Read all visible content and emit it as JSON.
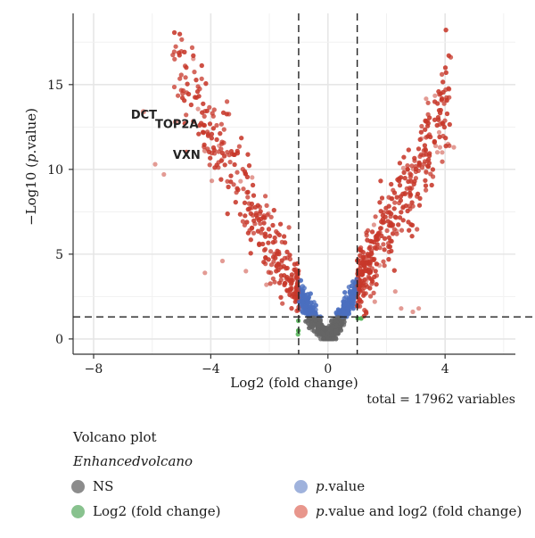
{
  "chart_data": {
    "type": "scatter",
    "title": "Volcano plot",
    "subtitle": "Enhancedvolcano",
    "caption": "total = 17962 variables",
    "xlabel": "Log2 (fold change)",
    "ylabel_prefix": "−Log10 (",
    "ylabel_italic": "p",
    "ylabel_suffix": ".value)",
    "xlim": [
      -8.7,
      6.4
    ],
    "ylim": [
      -0.9,
      19.2
    ],
    "xticks": [
      -8,
      -4,
      0,
      4
    ],
    "xtick_labels": [
      "−8",
      "−4",
      "0",
      "4"
    ],
    "yticks": [
      0,
      5,
      10,
      15
    ],
    "ytick_labels": [
      "0",
      "5",
      "10",
      "15"
    ],
    "fc_cutoff": 1,
    "p_cutoff_log10": 1.3,
    "grid": true,
    "legend_position": "bottom",
    "legend": [
      {
        "label": "NS",
        "color": "#8c8c8c"
      },
      {
        "label": "Log2 (fold change)",
        "color": "#88c28e"
      },
      {
        "label_italic": "p",
        "label": ".value",
        "color": "#9fb2dc"
      },
      {
        "label_italic": "p",
        "label": ".value and log2 (fold change)",
        "color": "#e8968c"
      }
    ],
    "colors": {
      "ns": "#666666",
      "fc": "#4caf50",
      "p": "#4a6fbf",
      "both": "#c8382a"
    },
    "labeled_points": [
      {
        "gene": "DCT",
        "x": -6.3,
        "y": 13.4
      },
      {
        "gene": "TOP2A",
        "x": -5.2,
        "y": 12.8
      },
      {
        "gene": "VXN",
        "x": -4.2,
        "y": 11.1
      }
    ],
    "total_variables": 17962
  }
}
